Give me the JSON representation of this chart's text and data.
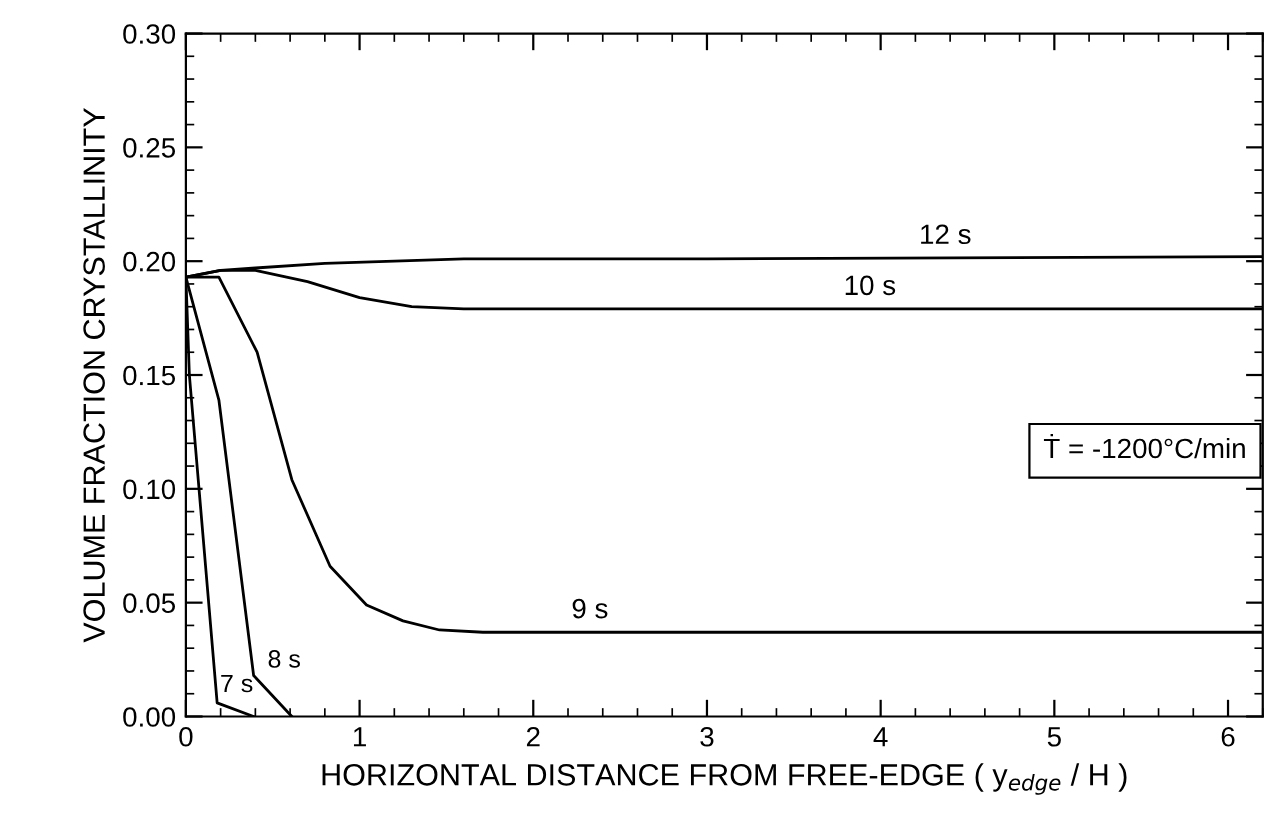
{
  "chart_data": {
    "type": "line",
    "xlabel": "HORIZONTAL DISTANCE FROM FREE-EDGE ( y$_{edge}$ / H )",
    "ylabel": "VOLUME FRACTION CRYSTALLINITY",
    "xlim": [
      0,
      6.2
    ],
    "ylim": [
      0,
      0.3
    ],
    "xticks": [
      0,
      1,
      2,
      3,
      4,
      5,
      6
    ],
    "yticks": [
      {
        "value": 0,
        "label": "0.00"
      },
      {
        "value": 0.05,
        "label": "0.05"
      },
      {
        "value": 0.1,
        "label": "0.10"
      },
      {
        "value": 0.15,
        "label": "0.15"
      },
      {
        "value": 0.2,
        "label": "0.20"
      },
      {
        "value": 0.25,
        "label": "0.25"
      },
      {
        "value": 0.3,
        "label": "0.30"
      }
    ],
    "grid": false,
    "legend": false,
    "marker": "none",
    "line_style": "solid",
    "series": [
      {
        "name": "12 s",
        "color": "#000000",
        "x": [
          0,
          0.2,
          0.4,
          0.8,
          1.2,
          1.6,
          3,
          6.2
        ],
        "values": [
          0.193,
          0.196,
          0.197,
          0.199,
          0.2,
          0.201,
          0.201,
          0.202
        ]
      },
      {
        "name": "10 s",
        "color": "#000000",
        "x": [
          0,
          0.2,
          0.4,
          0.7,
          1.0,
          1.3,
          1.6,
          6.2
        ],
        "values": [
          0.193,
          0.196,
          0.196,
          0.191,
          0.184,
          0.18,
          0.179,
          0.179
        ]
      },
      {
        "name": "9 s",
        "color": "#000000",
        "x": [
          0,
          0.19,
          0.41,
          0.61,
          0.83,
          1.04,
          1.25,
          1.46,
          1.71,
          6.2
        ],
        "values": [
          0.193,
          0.193,
          0.16,
          0.104,
          0.066,
          0.049,
          0.042,
          0.038,
          0.037,
          0.037
        ]
      },
      {
        "name": "8 s",
        "color": "#000000",
        "x": [
          0,
          0.19,
          0.39,
          0.61
        ],
        "values": [
          0.193,
          0.139,
          0.018,
          0.0
        ]
      },
      {
        "name": "7 s",
        "color": "#000000",
        "x": [
          0,
          0.02,
          0.18,
          0.39
        ],
        "values": [
          0.193,
          0.15,
          0.006,
          0.0
        ]
      }
    ],
    "annotations": [
      "Ṫ = -1200°C/min"
    ]
  }
}
